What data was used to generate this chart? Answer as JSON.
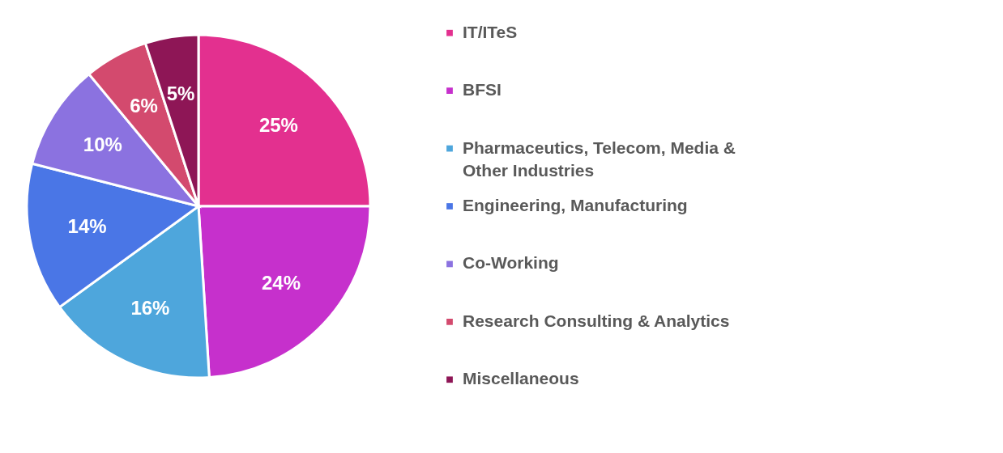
{
  "chart_data": {
    "type": "pie",
    "categories": [
      "IT/ITeS",
      "BFSI",
      "Pharmaceutics, Telecom, Media & Other Industries",
      "Engineering, Manufacturing",
      "Co-Working",
      "Research Consulting & Analytics",
      "Miscellaneous"
    ],
    "values": [
      25,
      24,
      16,
      14,
      10,
      6,
      5
    ],
    "colors": [
      "#e3308f",
      "#c630cc",
      "#4ea6dc",
      "#4a76e6",
      "#8b72e0",
      "#d34a6e",
      "#8e1656"
    ],
    "value_labels": [
      "25%",
      "24%",
      "16%",
      "14%",
      "10%",
      "6%",
      "5%"
    ],
    "legend": "right"
  }
}
